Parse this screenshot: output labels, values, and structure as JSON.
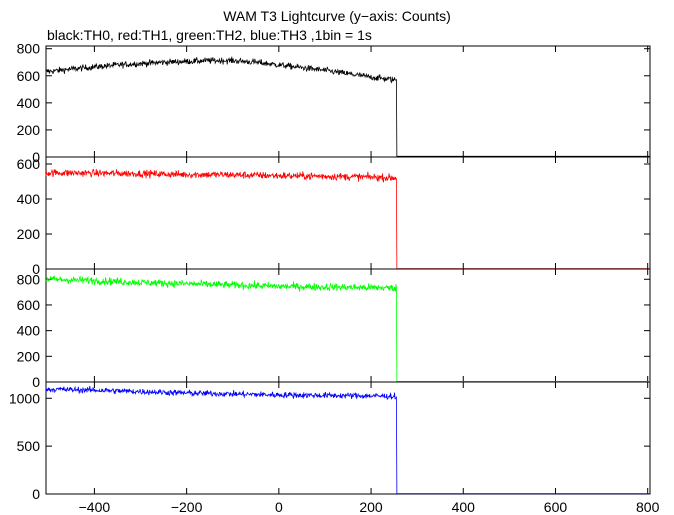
{
  "title": "WAM T3 Lightcurve (y−axis: Counts)",
  "subtitle": "black:TH0, red:TH1, green:TH2, blue:TH3 ,1bin = 1s",
  "chart_data": {
    "type": "line",
    "x_range": [
      -505,
      805
    ],
    "x_ticks": [
      -400,
      -200,
      0,
      200,
      400,
      600,
      800
    ],
    "x_tick_labels": [
      "−400",
      "−200",
      "0",
      "200",
      "400",
      "600",
      "800"
    ],
    "panels": [
      {
        "name": "TH0",
        "color": "#000000",
        "ylim": [
          0,
          820
        ],
        "y_ticks": [
          0,
          200,
          400,
          600,
          800
        ],
        "y_tick_labels": [
          "0",
          "200",
          "400",
          "600",
          "800"
        ],
        "shape_points": [
          [
            -505,
            630
          ],
          [
            -450,
            650
          ],
          [
            -350,
            680
          ],
          [
            -250,
            700
          ],
          [
            -150,
            712
          ],
          [
            -100,
            712
          ],
          [
            -50,
            700
          ],
          [
            0,
            680
          ],
          [
            50,
            660
          ],
          [
            100,
            640
          ],
          [
            150,
            615
          ],
          [
            200,
            590
          ],
          [
            250,
            570
          ],
          [
            255,
            570
          ],
          [
            255.1,
            5
          ],
          [
            805,
            5
          ]
        ],
        "noise": 22
      },
      {
        "name": "TH1",
        "color": "#ff0000",
        "ylim": [
          0,
          640
        ],
        "y_ticks": [
          0,
          200,
          400,
          600
        ],
        "y_tick_labels": [
          "0",
          "200",
          "400",
          "600"
        ],
        "shape_points": [
          [
            -505,
            550
          ],
          [
            -400,
            548
          ],
          [
            -300,
            545
          ],
          [
            -200,
            540
          ],
          [
            -100,
            538
          ],
          [
            0,
            533
          ],
          [
            100,
            530
          ],
          [
            200,
            525
          ],
          [
            255,
            520
          ],
          [
            255.1,
            2
          ],
          [
            805,
            2
          ]
        ],
        "noise": 20
      },
      {
        "name": "TH2",
        "color": "#00ff00",
        "ylim": [
          0,
          880
        ],
        "y_ticks": [
          0,
          200,
          400,
          600,
          800
        ],
        "y_tick_labels": [
          "0",
          "200",
          "400",
          "600",
          "800"
        ],
        "shape_points": [
          [
            -505,
            800
          ],
          [
            -400,
            790
          ],
          [
            -300,
            775
          ],
          [
            -200,
            765
          ],
          [
            -100,
            755
          ],
          [
            0,
            745
          ],
          [
            100,
            740
          ],
          [
            200,
            735
          ],
          [
            255,
            732
          ],
          [
            255.1,
            5
          ],
          [
            805,
            5
          ]
        ],
        "noise": 28
      },
      {
        "name": "TH3",
        "color": "#0000ff",
        "ylim": [
          0,
          1170
        ],
        "y_ticks": [
          0,
          500,
          1000
        ],
        "y_tick_labels": [
          "0",
          "500",
          "1000"
        ],
        "shape_points": [
          [
            -505,
            1095
          ],
          [
            -400,
            1085
          ],
          [
            -300,
            1070
          ],
          [
            -200,
            1055
          ],
          [
            -100,
            1045
          ],
          [
            0,
            1035
          ],
          [
            100,
            1030
          ],
          [
            200,
            1025
          ],
          [
            255,
            1020
          ],
          [
            255.1,
            3
          ],
          [
            805,
            3
          ]
        ],
        "noise": 30
      }
    ]
  }
}
